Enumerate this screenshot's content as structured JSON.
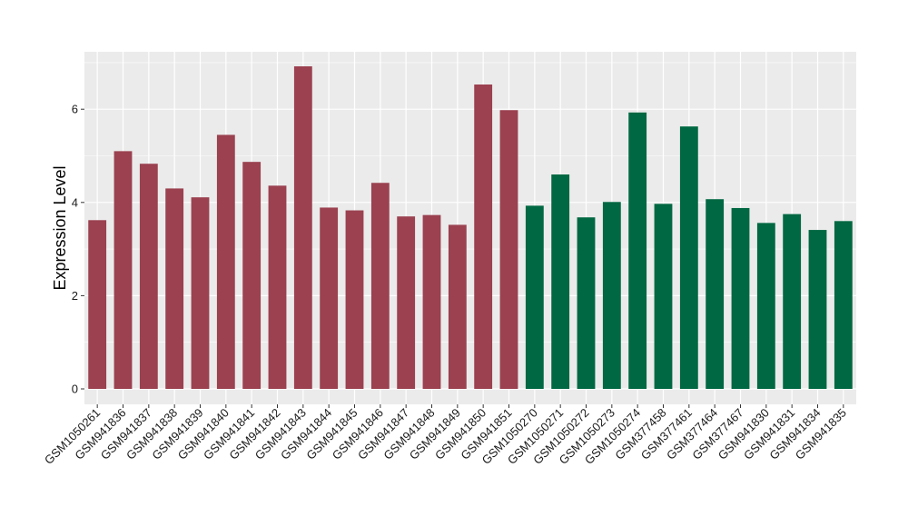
{
  "chart_data": {
    "type": "bar",
    "ylabel": "Expression Level",
    "xlabel": "",
    "ylim": [
      0,
      7.1
    ],
    "yticks": [
      0,
      2,
      4,
      6
    ],
    "grid": true,
    "panel_background": "#EBEBEB",
    "grid_color": "#FFFFFF",
    "categories": [
      "GSM1050261",
      "GSM941836",
      "GSM941837",
      "GSM941838",
      "GSM941839",
      "GSM941840",
      "GSM941841",
      "GSM941842",
      "GSM941843",
      "GSM941844",
      "GSM941845",
      "GSM941846",
      "GSM941847",
      "GSM941848",
      "GSM941849",
      "GSM941850",
      "GSM941851",
      "GSM1050270",
      "GSM1050271",
      "GSM1050272",
      "GSM1050273",
      "GSM1050274",
      "GSM377458",
      "GSM377461",
      "GSM377464",
      "GSM377467",
      "GSM941830",
      "GSM941831",
      "GSM941834",
      "GSM941835"
    ],
    "values": [
      3.62,
      5.1,
      4.83,
      4.3,
      4.11,
      5.45,
      4.87,
      4.36,
      6.92,
      3.89,
      3.83,
      4.42,
      3.7,
      3.73,
      3.52,
      6.53,
      5.98,
      3.93,
      4.6,
      3.68,
      4.01,
      5.93,
      3.97,
      5.63,
      4.07,
      3.88,
      3.56,
      3.75,
      3.41,
      3.6
    ],
    "groups": [
      "group1",
      "group1",
      "group1",
      "group1",
      "group1",
      "group1",
      "group1",
      "group1",
      "group1",
      "group1",
      "group1",
      "group1",
      "group1",
      "group1",
      "group1",
      "group1",
      "group1",
      "group2",
      "group2",
      "group2",
      "group2",
      "group2",
      "group2",
      "group2",
      "group2",
      "group2",
      "group2",
      "group2",
      "group2",
      "group2"
    ],
    "group_colors": {
      "group1": "#9B4150",
      "group2": "#006842"
    }
  }
}
